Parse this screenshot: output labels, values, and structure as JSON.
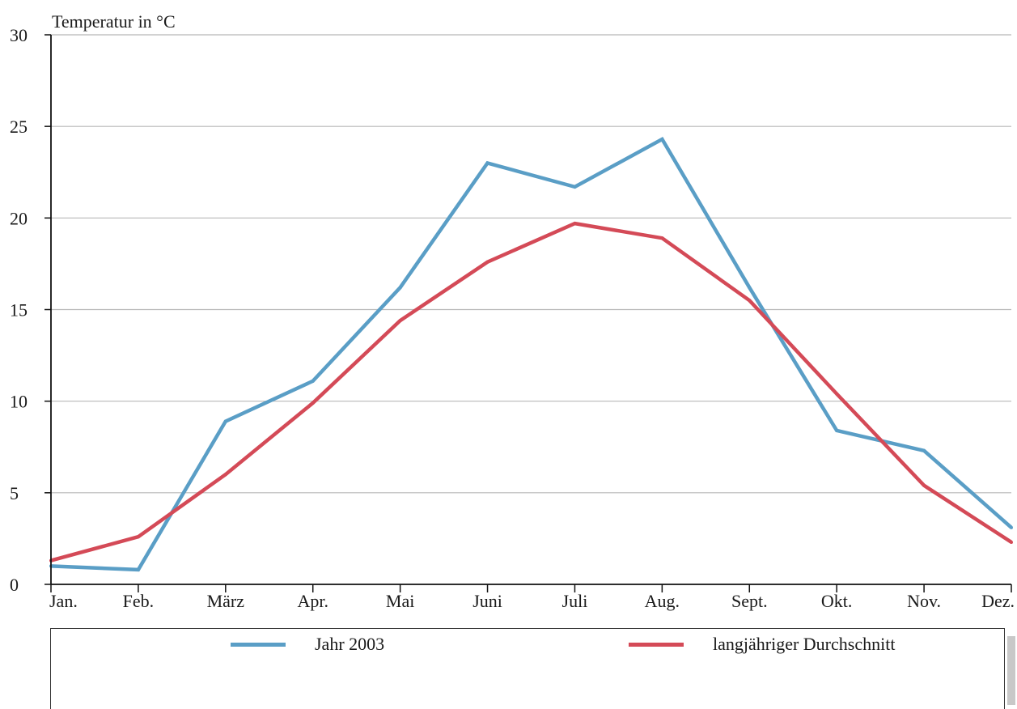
{
  "chart_data": {
    "type": "line",
    "title": "",
    "ylabel": "Temperatur in °C",
    "xlabel": "",
    "categories": [
      "Jan.",
      "Feb.",
      "März",
      "Apr.",
      "Mai",
      "Juni",
      "Juli",
      "Aug.",
      "Sept.",
      "Okt.",
      "Nov.",
      "Dez."
    ],
    "ylim": [
      0,
      30
    ],
    "yticks": [
      "0",
      "5",
      "10",
      "15",
      "20",
      "25",
      "30"
    ],
    "grid": true,
    "legend_position": "bottom",
    "series": [
      {
        "name": "Jahr 2003",
        "color": "#5a9ec6",
        "values": [
          1.0,
          0.8,
          8.9,
          11.1,
          16.2,
          23.0,
          21.7,
          24.3,
          16.2,
          8.4,
          7.3,
          3.1
        ]
      },
      {
        "name": "langjähriger Durchschnitt",
        "color": "#d44a57",
        "values": [
          1.3,
          2.6,
          6.0,
          9.9,
          14.4,
          17.6,
          19.7,
          18.9,
          15.5,
          10.4,
          5.4,
          2.3
        ]
      }
    ]
  }
}
